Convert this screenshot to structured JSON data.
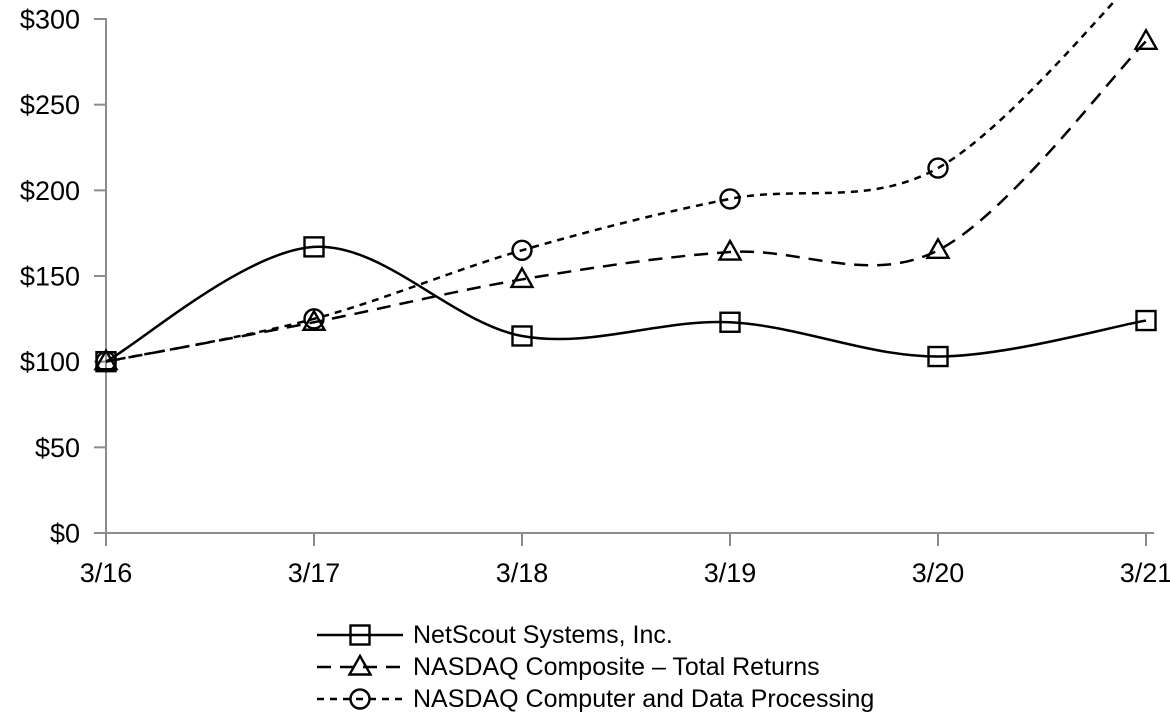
{
  "chart_data": {
    "type": "line",
    "title": "",
    "xlabel": "",
    "ylabel": "",
    "categories": [
      "3/16",
      "3/17",
      "3/18",
      "3/19",
      "3/20",
      "3/21"
    ],
    "y_ticks": [
      0,
      50,
      100,
      150,
      200,
      250,
      300
    ],
    "y_tick_labels": [
      "$0",
      "$50",
      "$100",
      "$150",
      "$200",
      "$250",
      "$300"
    ],
    "ylim": [
      0,
      300
    ],
    "grid": false,
    "legend_position": "bottom-center",
    "series": [
      {
        "name": "NetScout Systems, Inc.",
        "marker": "square",
        "line": "solid",
        "values": [
          100,
          167,
          115,
          123,
          103,
          124
        ]
      },
      {
        "name": "NASDAQ Composite – Total Returns",
        "marker": "triangle",
        "line": "long-dash",
        "values": [
          100,
          123,
          148,
          164,
          165,
          287
        ]
      },
      {
        "name": "NASDAQ Computer and Data Processing",
        "marker": "circle",
        "line": "short-dash",
        "values": [
          100,
          125,
          165,
          195,
          213,
          330
        ],
        "last_point_clipped_above_top": true
      }
    ],
    "colors": {
      "line": "#000000",
      "axis": "#8c8c8c",
      "text": "#000000",
      "background": "#ffffff"
    }
  }
}
